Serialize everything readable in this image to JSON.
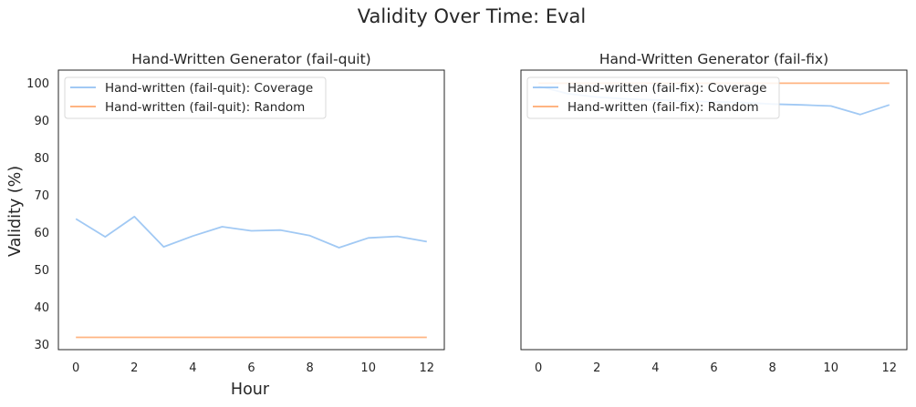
{
  "figure": {
    "suptitle": "Validity Over Time: Eval"
  },
  "colors": {
    "coverage": "#a1c9f4",
    "random": "#ffb482",
    "axes": "#262626",
    "legend_border": "#d9d9d9"
  },
  "chart_data": [
    {
      "type": "line",
      "title": "Hand-Written Generator (fail-quit)",
      "xlabel": "Hour",
      "ylabel": "Validity (%)",
      "xlim": [
        -0.6,
        12.6
      ],
      "ylim": [
        28.7,
        103.5
      ],
      "xticks": [
        0,
        2,
        4,
        6,
        8,
        10,
        12
      ],
      "yticks": [
        30,
        40,
        50,
        60,
        70,
        80,
        90,
        100
      ],
      "grid": false,
      "legend": "upper left",
      "x": [
        0,
        1,
        2,
        3,
        4,
        5,
        6,
        7,
        8,
        9,
        10,
        11,
        12
      ],
      "series": [
        {
          "name": "Hand-written (fail-quit): Coverage",
          "values": [
            63.7,
            58.9,
            64.3,
            56.2,
            59.1,
            61.6,
            60.5,
            60.7,
            59.2,
            56.0,
            58.6,
            59.0,
            57.6
          ]
        },
        {
          "name": "Hand-written (fail-quit): Random",
          "values": [
            32.0,
            32.0,
            32.0,
            32.0,
            32.0,
            32.0,
            32.0,
            32.0,
            32.0,
            32.0,
            32.0,
            32.0,
            32.0
          ]
        }
      ]
    },
    {
      "type": "line",
      "title": "Hand-Written Generator (fail-fix)",
      "xlabel": "",
      "ylabel": "",
      "xlim": [
        -0.6,
        12.6
      ],
      "ylim": [
        28.7,
        103.5
      ],
      "xticks": [
        0,
        2,
        4,
        6,
        8,
        10,
        12
      ],
      "yticks": [],
      "grid": false,
      "legend": "upper left",
      "x": [
        0,
        1,
        2,
        3,
        4,
        5,
        6,
        7,
        8,
        9,
        10,
        11,
        12
      ],
      "series": [
        {
          "name": "Hand-written (fail-fix): Coverage",
          "values": [
            99.2,
            97.2,
            96.3,
            95.8,
            95.5,
            95.2,
            95.0,
            94.8,
            94.4,
            94.2,
            93.9,
            91.6,
            94.2
          ]
        },
        {
          "name": "Hand-written (fail-fix): Random",
          "values": [
            100,
            100,
            100,
            100,
            100,
            100,
            100,
            100,
            100,
            100,
            100,
            100,
            100
          ]
        }
      ]
    }
  ]
}
